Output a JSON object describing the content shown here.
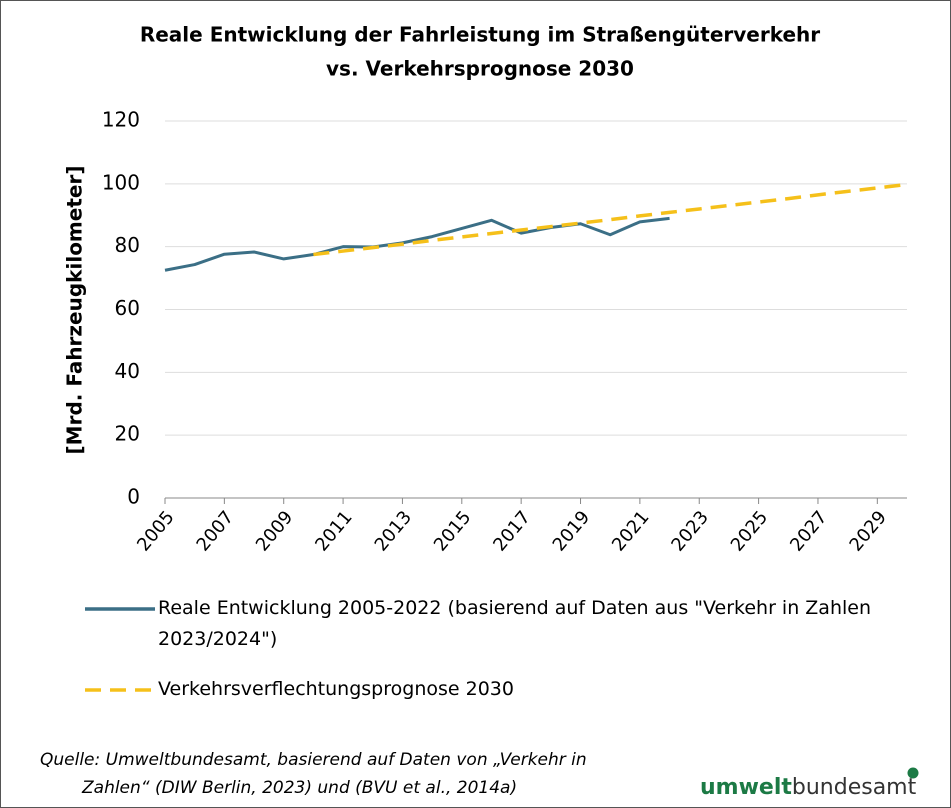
{
  "chart_data": {
    "type": "line",
    "title": [
      "Reale Entwicklung der Fahrleistung im Straßengüterverkehr",
      "vs. Verkehrsprognose 2030"
    ],
    "y_label": "[Mrd. Fahrzeugkilometer]",
    "xlim": [
      2005,
      2030
    ],
    "xticks": [
      2005,
      2007,
      2009,
      2011,
      2013,
      2015,
      2017,
      2019,
      2021,
      2023,
      2025,
      2027,
      2029
    ],
    "ylim": [
      0,
      120
    ],
    "yticks": [
      0,
      20,
      40,
      60,
      80,
      100,
      120
    ],
    "grid": true,
    "series": [
      {
        "name": "Reale Entwicklung 2005-2022 (basierend auf Daten aus \"Verkehr in Zahlen 2023/2024\")",
        "color": "#3b6f86",
        "dashed": false,
        "x": [
          2005,
          2006,
          2007,
          2008,
          2009,
          2010,
          2011,
          2012,
          2013,
          2014,
          2015,
          2016,
          2017,
          2018,
          2019,
          2020,
          2021,
          2022
        ],
        "values": [
          72.5,
          74.3,
          77.6,
          78.3,
          76.1,
          77.5,
          80.0,
          79.9,
          81.2,
          83.2,
          85.8,
          88.4,
          84.3,
          86.1,
          87.3,
          83.8,
          87.9,
          89.0
        ]
      },
      {
        "name": "Verkehrsverflechtungsprognose 2030",
        "color": "#f5c01a",
        "dashed": true,
        "x": [
          2010,
          2011,
          2012,
          2013,
          2014,
          2015,
          2016,
          2017,
          2018,
          2019,
          2020,
          2021,
          2022,
          2023,
          2024,
          2025,
          2026,
          2027,
          2028,
          2029,
          2030
        ],
        "values": [
          77.5,
          78.6,
          79.7,
          80.8,
          82.0,
          83.1,
          84.2,
          85.3,
          86.4,
          87.5,
          88.6,
          89.8,
          90.9,
          92.0,
          93.1,
          94.2,
          95.3,
          96.5,
          97.6,
          98.7,
          99.8
        ]
      }
    ],
    "source": [
      "Quelle: Umweltbundesamt, basierend auf Daten von „Verkehr in",
      "Zahlen“ (DIW Berlin, 2023) und (BVU et al., 2014a)"
    ],
    "logo": {
      "bold": "umwelt",
      "regular": "bundesamt"
    }
  }
}
